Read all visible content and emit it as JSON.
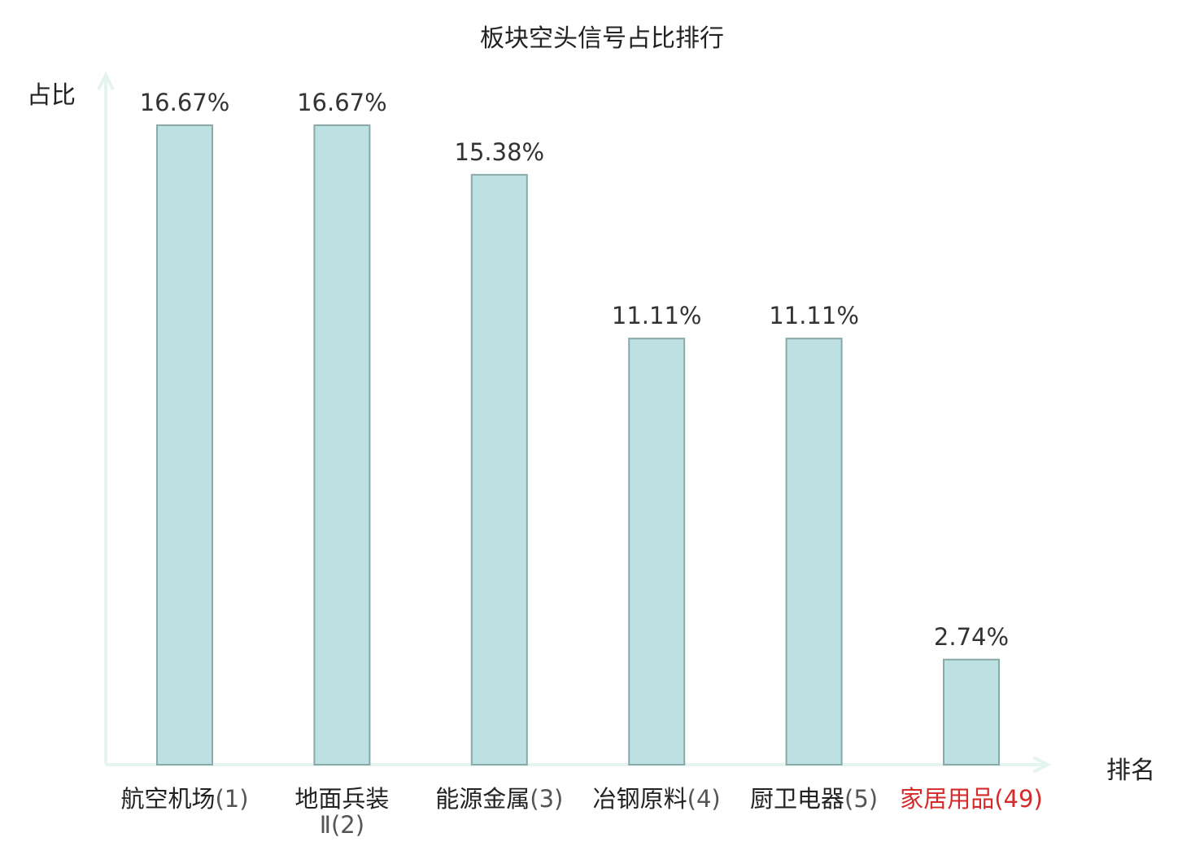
{
  "chart_data": {
    "type": "bar",
    "title": "板块空头信号占比排行",
    "ylabel": "占比",
    "xlabel": "排名",
    "categories": [
      {
        "name": "航空机场",
        "rank": "(1)"
      },
      {
        "name": "地面兵装",
        "rank": "Ⅱ(2)"
      },
      {
        "name": "能源金属",
        "rank": "(3)"
      },
      {
        "name": "冶钢原料",
        "rank": "(4)"
      },
      {
        "name": "厨卫电器",
        "rank": "(5)"
      },
      {
        "name": "家居用品",
        "rank": "(49)"
      }
    ],
    "values": [
      16.67,
      16.67,
      15.38,
      11.11,
      11.11,
      2.74
    ],
    "value_labels": [
      "16.67%",
      "16.67%",
      "15.38%",
      "11.11%",
      "11.11%",
      "2.74%"
    ],
    "highlight_index": 5,
    "ylim": [
      0,
      16.67
    ],
    "grid": false,
    "colors": {
      "bar_fill": "#bde1e3",
      "bar_stroke": "#8aa9a9",
      "axis": "#e3f4f1",
      "highlight": "#d62a2a",
      "value_text": "#333333"
    }
  }
}
